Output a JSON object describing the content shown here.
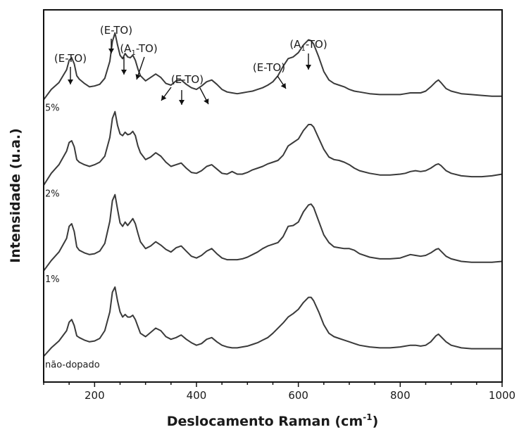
{
  "chart_data": {
    "type": "line",
    "xlabel": "Deslocamento Raman (cm",
    "xlabel_sup": "-1",
    "xlabel_close": ")",
    "ylabel": "Intensidade (u.a.)",
    "xlim": [
      100,
      1000
    ],
    "ylim": [
      0,
      4.35
    ],
    "xticks": [
      "200",
      "400",
      "600",
      "800",
      "1000"
    ],
    "xtick_values": [
      200,
      400,
      600,
      800,
      1000
    ],
    "y_ticks_shown": false,
    "grid": false,
    "x": [
      100,
      115,
      130,
      145,
      150,
      155,
      160,
      165,
      170,
      180,
      190,
      200,
      210,
      220,
      230,
      235,
      240,
      245,
      250,
      255,
      260,
      265,
      270,
      275,
      280,
      285,
      290,
      300,
      310,
      320,
      330,
      340,
      350,
      360,
      370,
      380,
      390,
      400,
      410,
      420,
      430,
      440,
      450,
      460,
      470,
      480,
      490,
      500,
      510,
      520,
      530,
      540,
      550,
      560,
      570,
      580,
      590,
      600,
      610,
      620,
      625,
      630,
      640,
      650,
      660,
      670,
      680,
      690,
      700,
      710,
      720,
      740,
      760,
      780,
      800,
      810,
      820,
      830,
      840,
      850,
      860,
      870,
      875,
      880,
      890,
      900,
      920,
      940,
      960,
      980,
      1000
    ],
    "series": [
      {
        "name": "5%",
        "offset": 3.3,
        "values": [
          0.0,
          0.12,
          0.2,
          0.35,
          0.46,
          0.49,
          0.42,
          0.28,
          0.24,
          0.19,
          0.15,
          0.16,
          0.18,
          0.25,
          0.45,
          0.68,
          0.78,
          0.64,
          0.52,
          0.48,
          0.54,
          0.5,
          0.49,
          0.52,
          0.46,
          0.36,
          0.28,
          0.22,
          0.26,
          0.3,
          0.26,
          0.19,
          0.17,
          0.22,
          0.23,
          0.18,
          0.14,
          0.12,
          0.16,
          0.21,
          0.23,
          0.18,
          0.12,
          0.09,
          0.08,
          0.07,
          0.08,
          0.09,
          0.1,
          0.12,
          0.14,
          0.17,
          0.21,
          0.28,
          0.39,
          0.48,
          0.5,
          0.55,
          0.64,
          0.7,
          0.69,
          0.65,
          0.5,
          0.33,
          0.23,
          0.19,
          0.17,
          0.15,
          0.12,
          0.1,
          0.09,
          0.07,
          0.06,
          0.06,
          0.06,
          0.07,
          0.08,
          0.08,
          0.08,
          0.1,
          0.15,
          0.21,
          0.23,
          0.2,
          0.13,
          0.1,
          0.07,
          0.06,
          0.05,
          0.04,
          0.04
        ]
      },
      {
        "name": "2%",
        "offset": 2.3,
        "values": [
          0.0,
          0.14,
          0.24,
          0.4,
          0.5,
          0.52,
          0.45,
          0.3,
          0.27,
          0.24,
          0.22,
          0.24,
          0.27,
          0.34,
          0.56,
          0.78,
          0.86,
          0.7,
          0.6,
          0.58,
          0.62,
          0.59,
          0.6,
          0.63,
          0.58,
          0.46,
          0.38,
          0.3,
          0.33,
          0.38,
          0.34,
          0.27,
          0.22,
          0.24,
          0.26,
          0.2,
          0.15,
          0.14,
          0.17,
          0.22,
          0.24,
          0.19,
          0.14,
          0.13,
          0.16,
          0.13,
          0.13,
          0.15,
          0.18,
          0.2,
          0.22,
          0.25,
          0.27,
          0.29,
          0.35,
          0.46,
          0.5,
          0.54,
          0.64,
          0.71,
          0.71,
          0.68,
          0.55,
          0.42,
          0.33,
          0.3,
          0.29,
          0.27,
          0.24,
          0.2,
          0.17,
          0.14,
          0.12,
          0.12,
          0.13,
          0.14,
          0.16,
          0.17,
          0.16,
          0.17,
          0.2,
          0.24,
          0.25,
          0.23,
          0.17,
          0.14,
          0.11,
          0.1,
          0.1,
          0.11,
          0.13
        ]
      },
      {
        "name": "1%",
        "offset": 1.3,
        "values": [
          0.0,
          0.12,
          0.22,
          0.38,
          0.52,
          0.55,
          0.46,
          0.28,
          0.24,
          0.21,
          0.19,
          0.2,
          0.23,
          0.32,
          0.58,
          0.82,
          0.89,
          0.72,
          0.56,
          0.52,
          0.57,
          0.53,
          0.57,
          0.61,
          0.55,
          0.44,
          0.34,
          0.26,
          0.29,
          0.34,
          0.3,
          0.25,
          0.22,
          0.27,
          0.29,
          0.23,
          0.17,
          0.15,
          0.18,
          0.23,
          0.26,
          0.2,
          0.15,
          0.13,
          0.13,
          0.13,
          0.14,
          0.16,
          0.19,
          0.22,
          0.26,
          0.29,
          0.31,
          0.33,
          0.4,
          0.52,
          0.53,
          0.57,
          0.69,
          0.77,
          0.78,
          0.74,
          0.58,
          0.42,
          0.33,
          0.28,
          0.27,
          0.26,
          0.26,
          0.24,
          0.2,
          0.16,
          0.14,
          0.14,
          0.15,
          0.17,
          0.19,
          0.18,
          0.17,
          0.18,
          0.21,
          0.25,
          0.26,
          0.23,
          0.17,
          0.14,
          0.11,
          0.1,
          0.1,
          0.1,
          0.11
        ]
      },
      {
        "name": "não-dopado",
        "offset": 0.3,
        "values": [
          0.0,
          0.1,
          0.18,
          0.3,
          0.4,
          0.43,
          0.36,
          0.24,
          0.22,
          0.19,
          0.17,
          0.18,
          0.21,
          0.3,
          0.52,
          0.75,
          0.81,
          0.65,
          0.52,
          0.46,
          0.49,
          0.46,
          0.46,
          0.48,
          0.43,
          0.35,
          0.27,
          0.23,
          0.28,
          0.33,
          0.3,
          0.23,
          0.2,
          0.22,
          0.25,
          0.2,
          0.16,
          0.13,
          0.15,
          0.2,
          0.22,
          0.17,
          0.13,
          0.11,
          0.1,
          0.1,
          0.11,
          0.12,
          0.14,
          0.16,
          0.19,
          0.22,
          0.27,
          0.33,
          0.39,
          0.46,
          0.5,
          0.55,
          0.63,
          0.69,
          0.69,
          0.65,
          0.52,
          0.37,
          0.27,
          0.23,
          0.21,
          0.19,
          0.17,
          0.15,
          0.13,
          0.11,
          0.1,
          0.1,
          0.11,
          0.12,
          0.13,
          0.13,
          0.12,
          0.13,
          0.17,
          0.24,
          0.26,
          0.23,
          0.17,
          0.13,
          0.1,
          0.09,
          0.09,
          0.09,
          0.09
        ]
      }
    ],
    "annotations": [
      {
        "text": "(E-TO)",
        "arrows_to": [
          155
        ]
      },
      {
        "text": "(E-TO)",
        "arrows_to": [
          236
        ]
      },
      {
        "text": "(A",
        "sub": "1",
        "after": "-TO)",
        "arrows_to": [
          258,
          275
        ]
      },
      {
        "text": "(E-TO)",
        "arrows_to": [
          322,
          366,
          430
        ]
      },
      {
        "text": "(E-TO)",
        "arrows_to": [
          580
        ]
      },
      {
        "text": "(A",
        "sub": "1",
        "after": "-TO)",
        "arrows_to": [
          625
        ]
      }
    ]
  }
}
